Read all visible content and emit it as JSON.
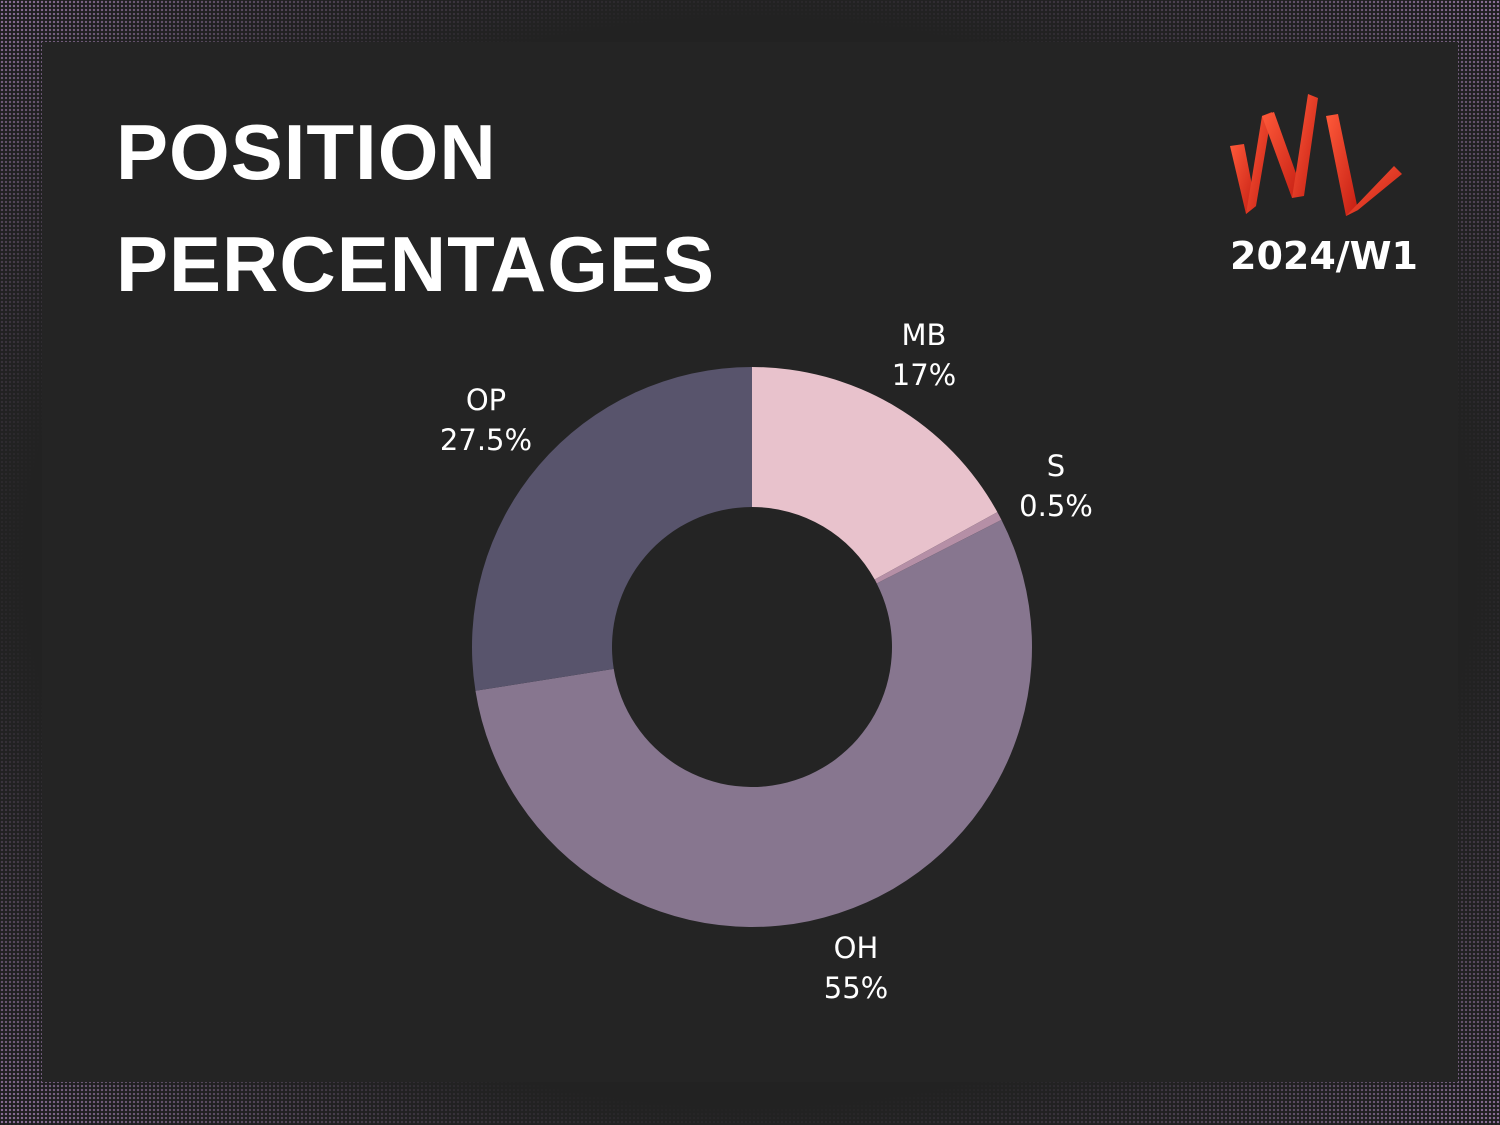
{
  "title_lines": [
    "POSITION",
    "PERCENTAGES"
  ],
  "logo": {
    "text": "VNL",
    "color": "#e8391f"
  },
  "season_label": "2024/W1",
  "colors": {
    "background": "#242424",
    "text": "#ffffff"
  },
  "chart_data": {
    "type": "pie",
    "variant": "donut",
    "start": "12 o'clock",
    "direction": "clockwise",
    "categories": [
      "MB",
      "S",
      "OH",
      "OP"
    ],
    "values": [
      17,
      0.5,
      55,
      27.5
    ],
    "value_labels": [
      "17%",
      "0.5%",
      "55%",
      "27.5%"
    ],
    "colors": [
      "#e8c2cc",
      "#b58fa6",
      "#87768f",
      "#58546c"
    ],
    "legend": "none",
    "labels_placement": "outside"
  }
}
